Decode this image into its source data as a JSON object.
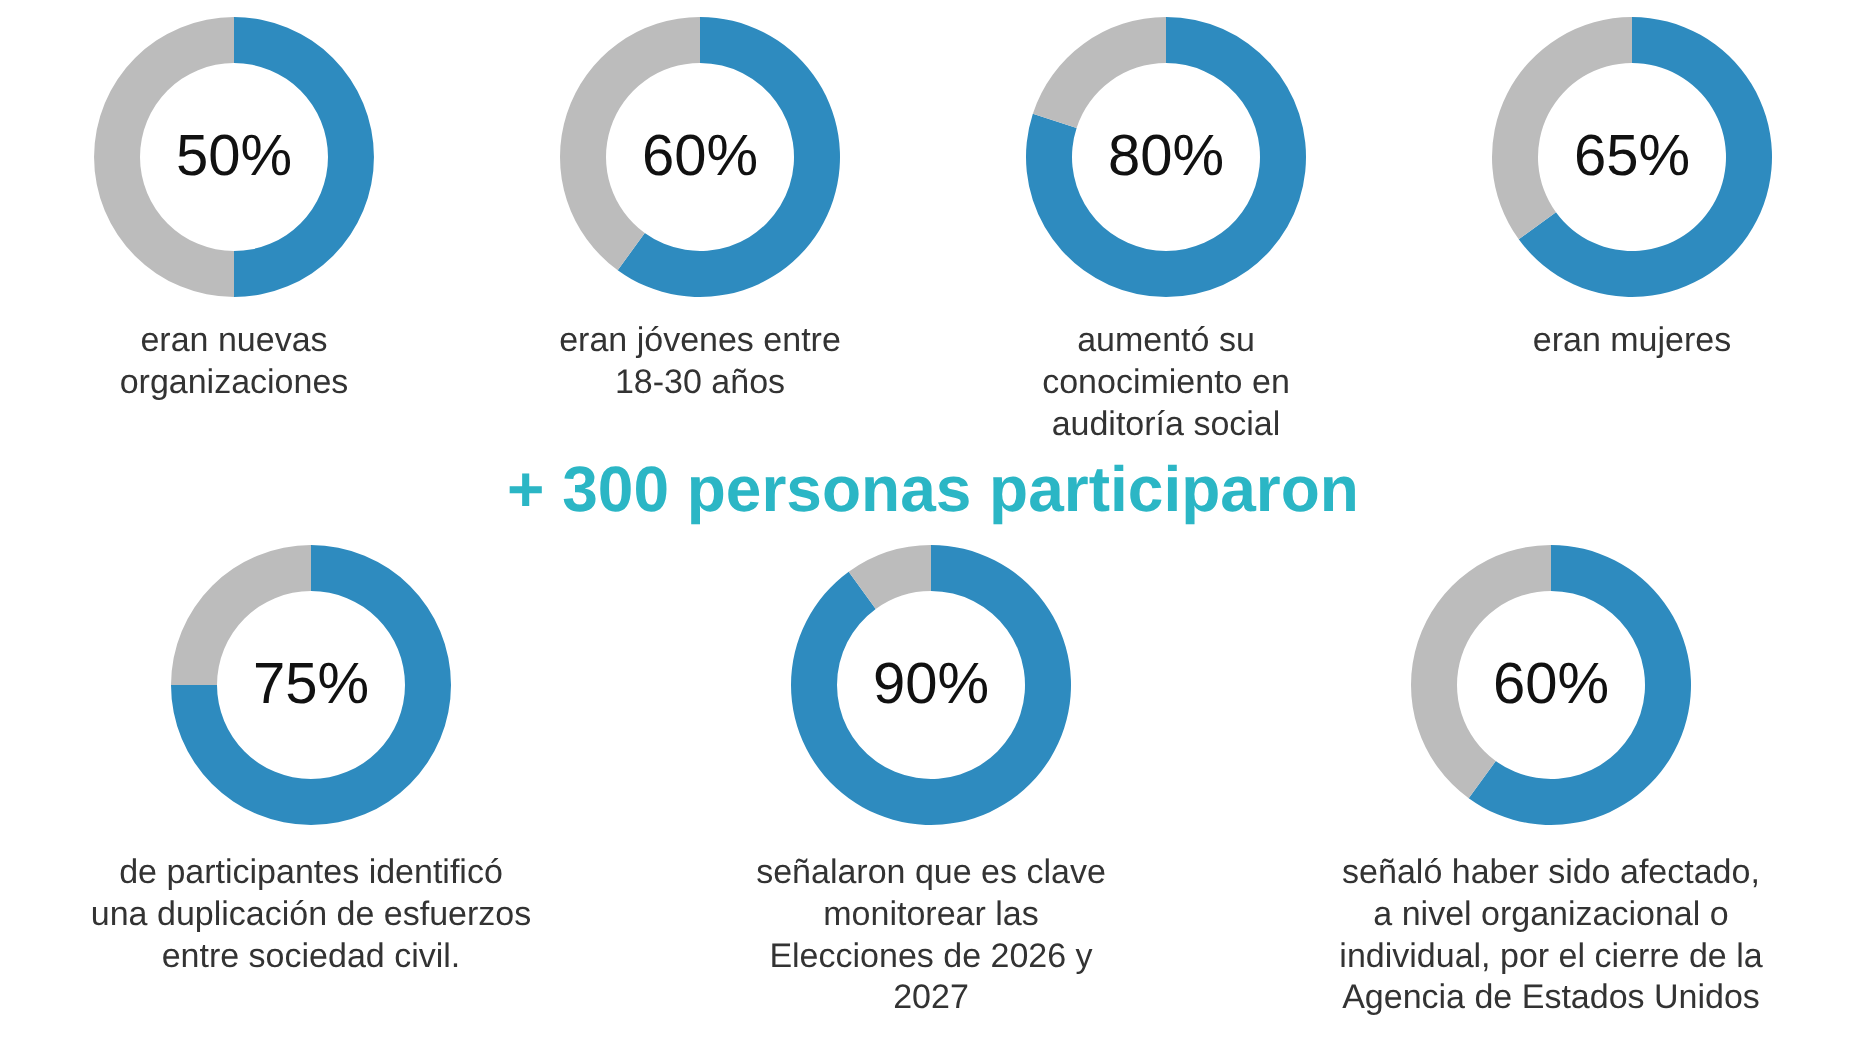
{
  "chart_data": [
    {
      "type": "donut",
      "categories": [
        null,
        null
      ],
      "values": [
        50,
        50
      ],
      "colors": [
        "#2e8bbf",
        "#bcbcbc"
      ],
      "annotations": [
        "50%",
        "eran nuevas\norganizaciones"
      ]
    },
    {
      "type": "donut",
      "categories": [
        null,
        null
      ],
      "values": [
        60,
        40
      ],
      "colors": [
        "#2e8bbf",
        "#bcbcbc"
      ],
      "annotations": [
        "60%",
        "eran jóvenes entre\n18-30 años"
      ]
    },
    {
      "type": "donut",
      "categories": [
        null,
        null
      ],
      "values": [
        80,
        20
      ],
      "colors": [
        "#2e8bbf",
        "#bcbcbc"
      ],
      "annotations": [
        "80%",
        "aumentó su\nconocimiento en\nauditoría social"
      ]
    },
    {
      "type": "donut",
      "categories": [
        null,
        null
      ],
      "values": [
        65,
        35
      ],
      "colors": [
        "#2e8bbf",
        "#bcbcbc"
      ],
      "annotations": [
        "65%",
        "eran mujeres"
      ]
    },
    {
      "type": "other",
      "title": "+ 300 personas participaron"
    },
    {
      "type": "donut",
      "categories": [
        null,
        null
      ],
      "values": [
        75,
        25
      ],
      "colors": [
        "#2e8bbf",
        "#bcbcbc"
      ],
      "annotations": [
        "75%",
        "de participantes identificó\nuna duplicación de esfuerzos\nentre sociedad civil."
      ]
    },
    {
      "type": "donut",
      "categories": [
        null,
        null
      ],
      "values": [
        90,
        10
      ],
      "colors": [
        "#2e8bbf",
        "#bcbcbc"
      ],
      "annotations": [
        "90%",
        "señalaron que es clave\nmonitorear las\nElecciones de 2026 y\n2027"
      ]
    },
    {
      "type": "donut",
      "categories": [
        null,
        null
      ],
      "values": [
        60,
        40
      ],
      "colors": [
        "#2e8bbf",
        "#bcbcbc"
      ],
      "annotations": [
        "60%",
        "señaló haber sido afectado,\na nivel organizacional o\nindividual, por el cierre de la\nAgencia de Estados Unidos"
      ]
    }
  ]
}
